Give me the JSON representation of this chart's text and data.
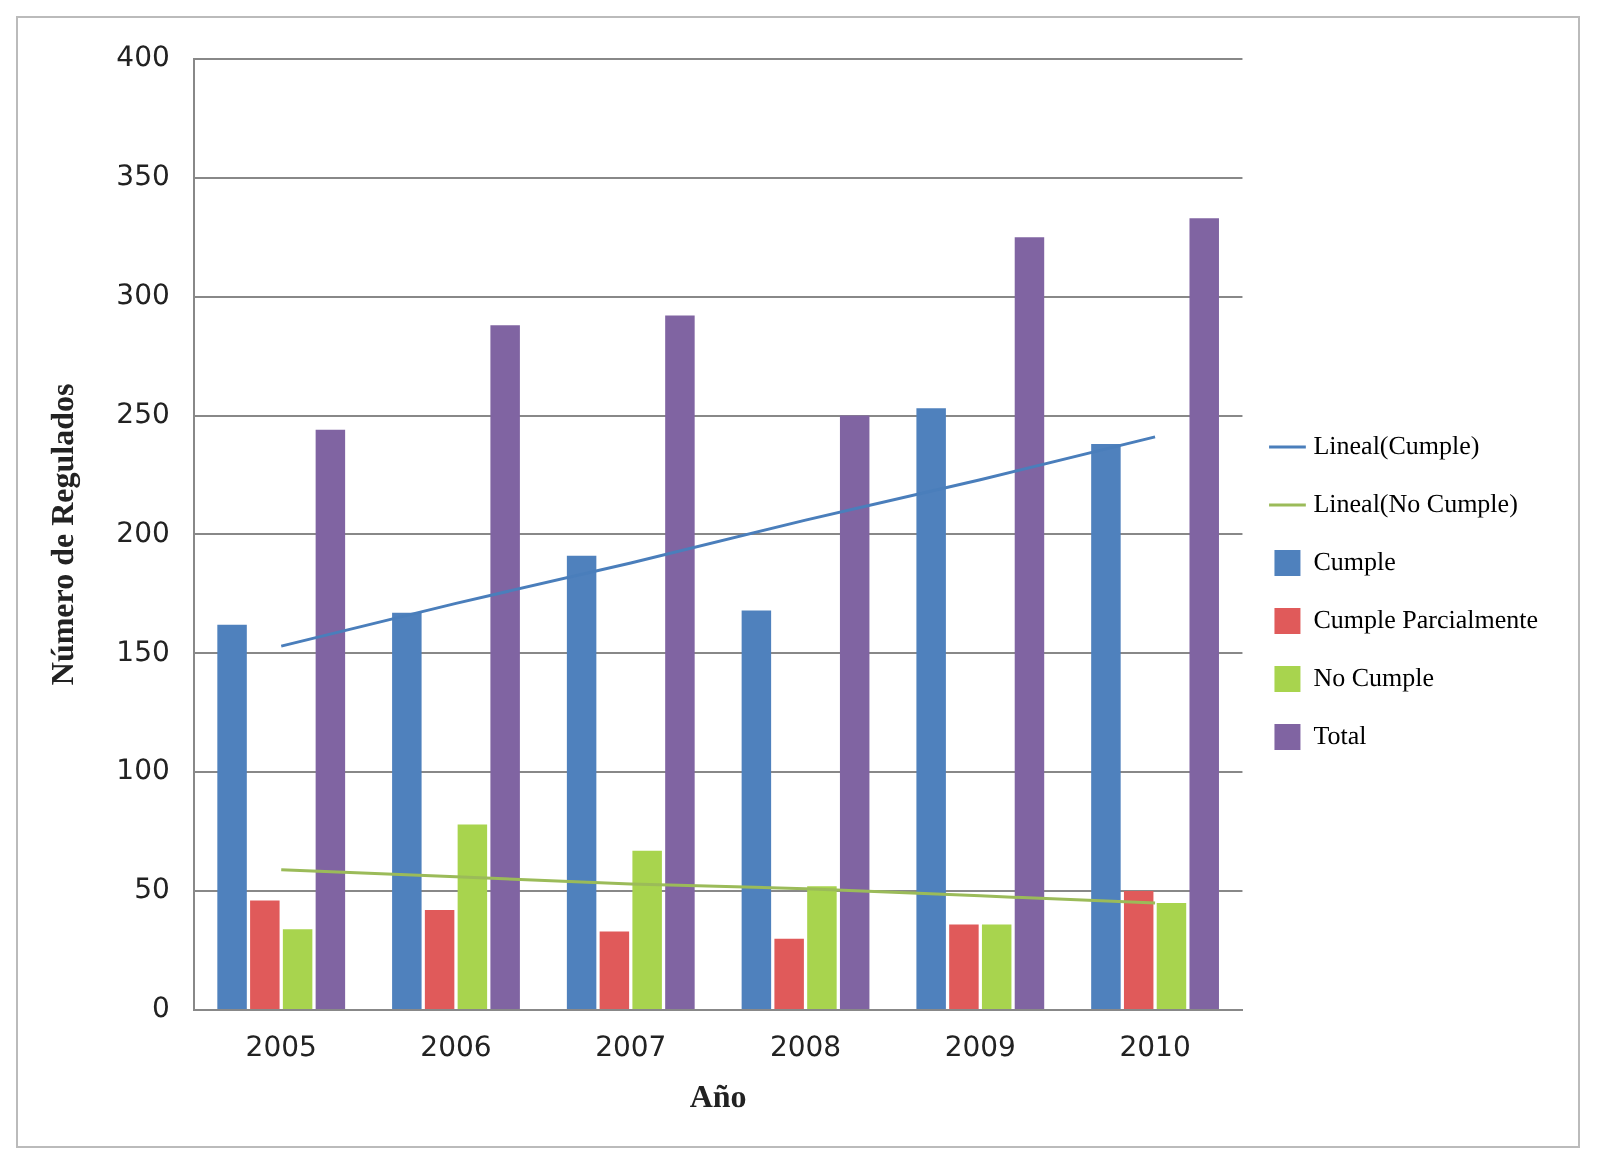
{
  "chart_data": {
    "type": "bar",
    "xlabel": "Año",
    "ylabel": "Número de Regulados",
    "categories": [
      "2005",
      "2006",
      "2007",
      "2008",
      "2009",
      "2010"
    ],
    "series": [
      {
        "name": "Cumple",
        "color": "#4f81bd",
        "values": [
          162,
          167,
          191,
          168,
          253,
          238
        ]
      },
      {
        "name": "Cumple Parcialmente",
        "color": "#e05a5a",
        "values": [
          46,
          42,
          33,
          30,
          36,
          50
        ]
      },
      {
        "name": "No Cumple",
        "color": "#a8d44e",
        "values": [
          34,
          78,
          67,
          52,
          36,
          45
        ]
      },
      {
        "name": "Total",
        "color": "#8064a2",
        "values": [
          244,
          288,
          292,
          250,
          325,
          333
        ]
      },
      {
        "name": "Lineal(Cumple)",
        "type": "line",
        "color": "#4a7ebb",
        "values": [
          153,
          171,
          188,
          206,
          223,
          241
        ]
      },
      {
        "name": "Lineal(No Cumple)",
        "type": "line",
        "color": "#9bbb59",
        "values": [
          59,
          56,
          53,
          51,
          48,
          45
        ]
      }
    ],
    "ylim": [
      0,
      400
    ],
    "yticks": [
      0,
      50,
      100,
      150,
      200,
      250,
      300,
      350,
      400
    ],
    "grid": "y",
    "legend": "right",
    "marker": "none"
  }
}
